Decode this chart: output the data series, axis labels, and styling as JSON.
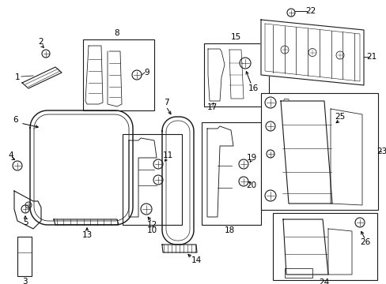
{
  "bg_color": "#ffffff",
  "fig_width": 4.89,
  "fig_height": 3.6,
  "dpi": 100,
  "line_color": "#1a1a1a",
  "text_color": "#000000",
  "line_width": 0.8,
  "font_size": 7.5
}
